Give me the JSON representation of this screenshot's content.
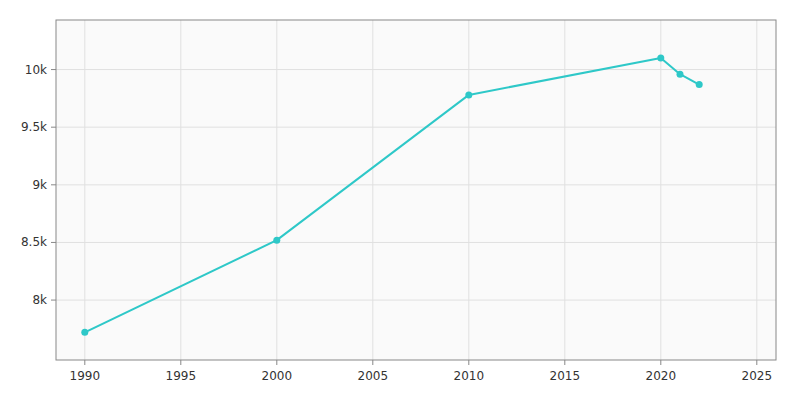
{
  "chart_data": {
    "type": "line",
    "x": [
      1990,
      2000,
      2010,
      2020,
      2021,
      2022
    ],
    "values": [
      7720,
      8520,
      9780,
      10100,
      9960,
      9870
    ],
    "color": "#2ec8c8",
    "marker": "circle",
    "xlim": [
      1988.5,
      2026
    ],
    "ylim": [
      7480,
      10430
    ],
    "xticks": [
      1990,
      1995,
      2000,
      2005,
      2010,
      2015,
      2020,
      2025
    ],
    "yticks": [
      {
        "value": 8000,
        "label": "8k"
      },
      {
        "value": 8500,
        "label": "8.5k"
      },
      {
        "value": 9000,
        "label": "9k"
      },
      {
        "value": 9500,
        "label": "9.5k"
      },
      {
        "value": 10000,
        "label": "10k"
      }
    ],
    "grid": true
  }
}
